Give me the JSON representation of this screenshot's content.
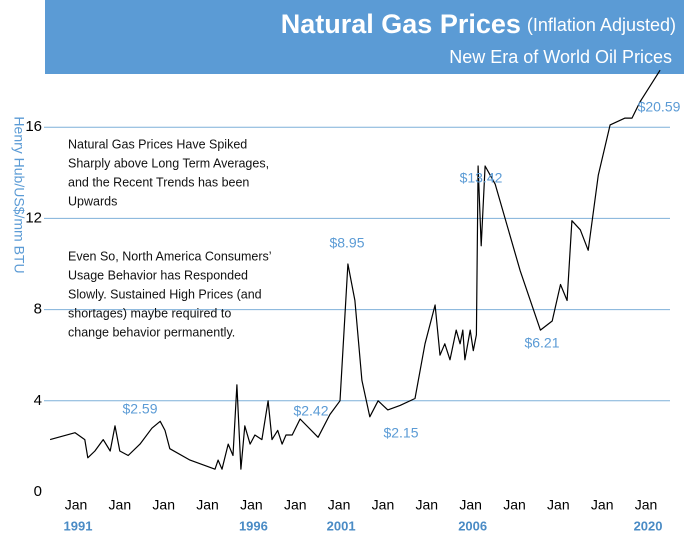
{
  "chart_data": {
    "type": "line",
    "title": "Natural Gas Prices",
    "title_suffix": "(Inflation Adjusted)",
    "subtitle": "New Era of World Oil Prices",
    "y_label": "Henry Hub/US$/mm BTU",
    "categories": [
      "Jan",
      "Jan",
      "Jan",
      "Jan",
      "Jan",
      "Jan",
      "Jan",
      "Jan",
      "Jan",
      "Jan",
      "Jan",
      "Jan",
      "Jan",
      "Jan"
    ],
    "year_labels": [
      "1991",
      null,
      null,
      null,
      "1996",
      null,
      "2001",
      null,
      null,
      "2006",
      null,
      null,
      null,
      "2020"
    ],
    "ylim": [
      0,
      20
    ],
    "yticks": [
      0,
      4,
      8,
      12,
      16
    ],
    "grid": true,
    "series": [
      {
        "name": "Henry Hub",
        "color": "#000000",
        "x": [
          -0.59,
          -0.02,
          0.2,
          0.27,
          0.43,
          0.62,
          0.78,
          0.89,
          1.0,
          1.19,
          1.46,
          1.73,
          1.92,
          2.03,
          2.14,
          2.6,
          3.17,
          3.24,
          3.33,
          3.47,
          3.58,
          3.67,
          3.76,
          3.85,
          3.97,
          4.08,
          4.24,
          4.38,
          4.47,
          4.6,
          4.7,
          4.79,
          4.93,
          5.11,
          5.52,
          5.79,
          6.02,
          6.2,
          6.36,
          6.52,
          6.7,
          6.89,
          7.11,
          7.39,
          7.73,
          7.96,
          8.19,
          8.3,
          8.41,
          8.53,
          8.67,
          8.76,
          8.82,
          8.87,
          8.99,
          9.06,
          9.13,
          9.17,
          9.24,
          9.33,
          9.56,
          10.13,
          10.59,
          10.86,
          11.05,
          11.2,
          11.31,
          11.5,
          11.68,
          11.91,
          12.18,
          12.52,
          12.68,
          12.86,
          13.32
        ],
        "values": [
          2.3,
          2.6,
          2.3,
          1.5,
          1.8,
          2.3,
          1.8,
          2.9,
          1.8,
          1.6,
          2.1,
          2.8,
          3.1,
          2.7,
          1.9,
          1.4,
          1.0,
          1.4,
          1.0,
          2.1,
          1.6,
          4.7,
          1.0,
          2.9,
          2.1,
          2.5,
          2.3,
          4.0,
          2.3,
          2.7,
          2.1,
          2.5,
          2.5,
          3.2,
          2.4,
          3.4,
          4.0,
          10.0,
          8.4,
          4.9,
          3.3,
          4.0,
          3.6,
          3.8,
          4.1,
          6.5,
          8.2,
          6.0,
          6.5,
          5.8,
          7.1,
          6.5,
          7.1,
          5.8,
          7.1,
          6.2,
          6.9,
          14.3,
          10.8,
          14.3,
          13.5,
          9.7,
          7.1,
          7.5,
          9.1,
          8.4,
          11.9,
          11.5,
          10.6,
          13.9,
          16.1,
          16.4,
          16.4,
          17.1,
          18.5
        ]
      }
    ],
    "annotations": [
      "$2.59",
      "$2.42",
      "$8.95",
      "$2.15",
      "$13.42",
      "$6.21",
      "$20.59"
    ],
    "notes": [
      [
        "Natural Gas Prices Have Spiked",
        "Sharply above Long Term Averages,",
        "and the Recent Trends has been",
        "Upwards"
      ],
      [
        "Even So, North America Consumers’",
        "Usage Behavior has Responded",
        "Slowly. Sustained High Prices (and",
        "shortages) maybe required to",
        "change behavior permanently."
      ]
    ]
  }
}
